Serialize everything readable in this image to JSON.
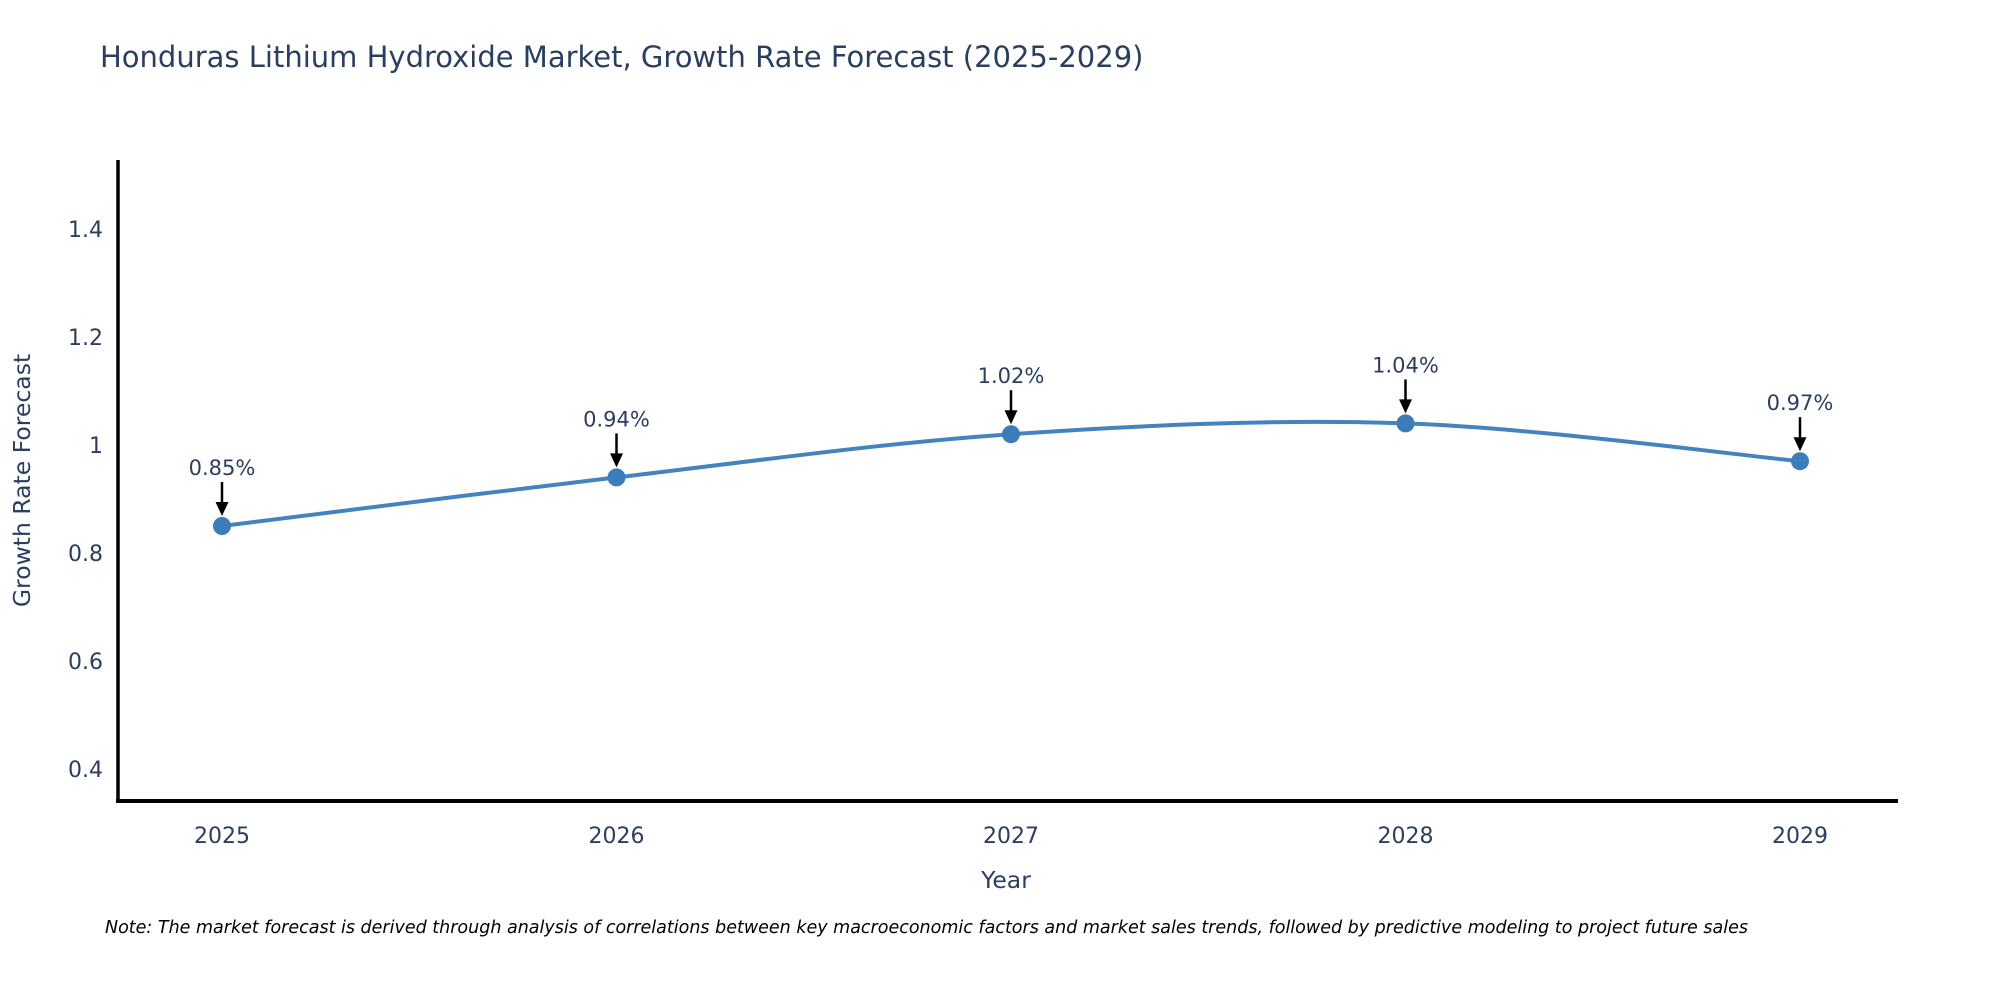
{
  "note": "Note: The market forecast is derived through analysis of correlations between key macroeconomic factors and market sales trends, followed by predictive modeling to project future sales",
  "chart_data": {
    "type": "line",
    "title": "Honduras Lithium Hydroxide Market, Growth Rate Forecast (2025-2029)",
    "x": [
      "2025",
      "2026",
      "2027",
      "2028",
      "2029"
    ],
    "y": [
      0.85,
      0.94,
      1.02,
      1.04,
      0.97
    ],
    "point_labels": [
      "0.85%",
      "0.94%",
      "1.02%",
      "1.04%",
      "0.97%"
    ],
    "xlabel": "Year",
    "ylabel": "Growth Rate Forecast",
    "yticks": [
      0.4,
      0.6,
      0.8,
      1,
      1.2,
      1.4
    ],
    "ylim": [
      0.34,
      1.53
    ],
    "grid": false,
    "legend": "none",
    "line_shape": "spline",
    "marker": "circle",
    "colors": {
      "line": "#4384bf",
      "marker": "#3c7cb8",
      "text": "#2a3f5f",
      "axis": "#000000",
      "annotation_arrow": "#000000"
    }
  }
}
